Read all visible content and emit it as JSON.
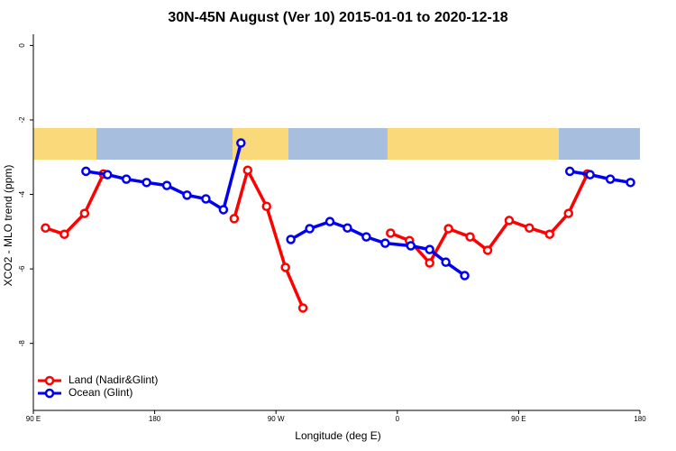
{
  "chart_data": {
    "type": "line",
    "title": "30N-45N August (Ver 10)   2015-01-01 to 2020-12-18",
    "x_label": "Longitude (deg E)",
    "y_label": "XCO2 - MLO trend (ppm)",
    "xlim": [
      90,
      540
    ],
    "xticks": [
      {
        "value": 90,
        "label": "90 E"
      },
      {
        "value": 180,
        "label": "180"
      },
      {
        "value": 270,
        "label": "90 W"
      },
      {
        "value": 360,
        "label": "0"
      },
      {
        "value": 450,
        "label": "90 E"
      },
      {
        "value": 540,
        "label": "180"
      }
    ],
    "ylim": [
      -9.8,
      0.3
    ],
    "yticks": [
      0,
      -2,
      -4,
      -6,
      -8
    ],
    "legend": "bottom-left",
    "series": [
      {
        "name": "Land (Nadir&Glint)",
        "color": "#ff0000",
        "x": [
          99,
          113,
          128,
          142,
          null,
          239,
          249,
          263,
          277,
          290,
          null,
          355,
          369,
          384,
          398,
          414,
          427,
          443,
          458,
          473,
          487,
          501
        ],
        "values": [
          -4.9,
          -5.07,
          -4.51,
          -3.45,
          null,
          -4.65,
          -3.35,
          -4.32,
          -5.96,
          -7.05,
          null,
          -5.04,
          -5.24,
          -5.84,
          -4.92,
          -5.14,
          -5.5,
          -4.7,
          -4.9,
          -5.07,
          -4.51,
          -3.45
        ]
      },
      {
        "name": "Ocean (Glint)",
        "color": "#0000ee",
        "x": [
          129,
          145,
          159,
          174,
          189,
          204,
          218,
          231,
          244,
          null,
          281,
          295,
          310,
          323,
          337,
          351,
          370,
          384,
          396,
          410,
          null,
          488,
          503,
          518,
          533
        ],
        "values": [
          -3.38,
          -3.47,
          -3.59,
          -3.68,
          -3.76,
          -4.02,
          -4.12,
          -4.41,
          -2.62,
          null,
          -5.21,
          -4.92,
          -4.73,
          -4.9,
          -5.14,
          -5.31,
          -5.38,
          -5.48,
          -5.82,
          -6.18,
          null,
          -3.38,
          -3.47,
          -3.59,
          -3.68
        ]
      }
    ]
  }
}
